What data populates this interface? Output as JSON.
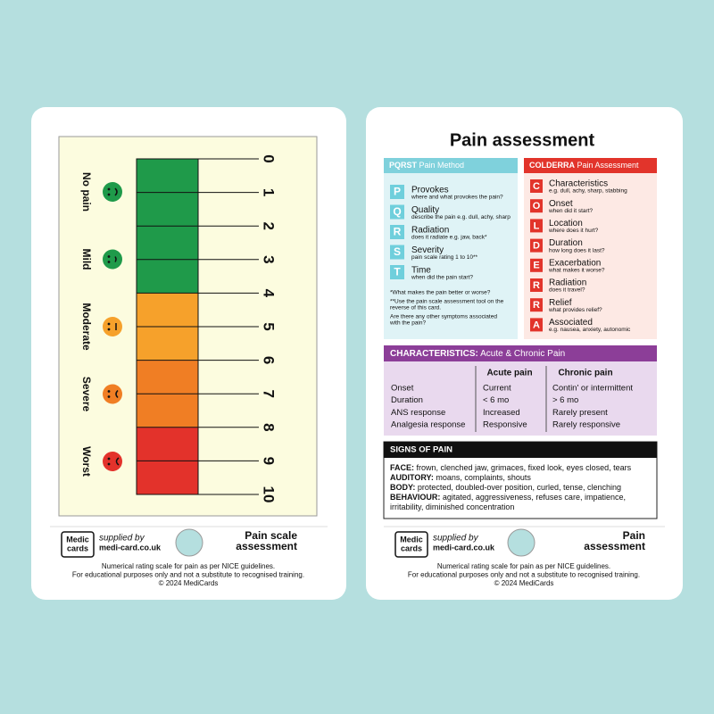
{
  "left_card": {
    "scale": {
      "numbers": [
        "0",
        "1",
        "2",
        "3",
        "4",
        "5",
        "6",
        "7",
        "8",
        "9",
        "10"
      ],
      "levels": [
        "No pain",
        "Mild",
        "Moderate",
        "Severe",
        "Worst"
      ]
    },
    "logo": [
      "Medic",
      "cards"
    ],
    "supplied_by": "supplied by",
    "url": "medi-card.co.uk",
    "card_title": [
      "Pain scale",
      "assessment"
    ],
    "footer": [
      "Numerical rating scale for pain as per NICE guidelines.",
      "For educational purposes only and not a substitute to recognised training.",
      "© 2024 MediCards"
    ]
  },
  "right_card": {
    "title": "Pain assessment",
    "pqrst": {
      "header": "PQRST",
      "header_sub": "Pain Method",
      "items": [
        {
          "letter": "P",
          "title": "Provokes",
          "desc": "where and what provokes the pain?"
        },
        {
          "letter": "Q",
          "title": "Quality",
          "desc": "describe the pain e.g. dull, achy, sharp"
        },
        {
          "letter": "R",
          "title": "Radiation",
          "desc": "does it radiate e.g. jaw, back*"
        },
        {
          "letter": "S",
          "title": "Severity",
          "desc": "pain scale rating 1 to 10**"
        },
        {
          "letter": "T",
          "title": "Time",
          "desc": "when did the pain start?"
        }
      ],
      "notes": [
        [
          "*What makes the pain better or worse?"
        ],
        [
          "**Use the pain scale assessment tool on the",
          "reverse of this card."
        ],
        [
          "Are there any other symptoms associated",
          "with the pain?"
        ]
      ]
    },
    "colderra": {
      "header": "COLDERRA",
      "header_sub": "Pain Assessment",
      "items": [
        {
          "letter": "C",
          "title": "Characteristics",
          "desc": "e.g. dull, achy, sharp, stabbing"
        },
        {
          "letter": "O",
          "title": "Onset",
          "desc": "when did it start?"
        },
        {
          "letter": "L",
          "title": "Location",
          "desc": "where does it hurt?"
        },
        {
          "letter": "D",
          "title": "Duration",
          "desc": "how long does it last?"
        },
        {
          "letter": "E",
          "title": "Exacerbation",
          "desc": "what makes it worse?"
        },
        {
          "letter": "R",
          "title": "Radiation",
          "desc": "does it travel?"
        },
        {
          "letter": "R",
          "title": "Relief",
          "desc": "what provides relief?"
        },
        {
          "letter": "A",
          "title": "Associated",
          "desc": "e.g. nausea, anxiety, autonomic"
        }
      ]
    },
    "characteristics": {
      "header": "CHARACTERISTICS:",
      "header_sub": "Acute & Chronic Pain",
      "columns": [
        "Acute pain",
        "Chronic pain"
      ],
      "rows": [
        [
          "Onset",
          "Current",
          "Contin' or intermittent"
        ],
        [
          "Duration",
          "< 6 mo",
          "> 6 mo"
        ],
        [
          "ANS response",
          "Increased",
          "Rarely present"
        ],
        [
          "Analgesia response",
          "Responsive",
          "Rarely responsive"
        ]
      ]
    },
    "signs": {
      "header": "SIGNS OF PAIN",
      "lines": [
        {
          "label": "FACE:",
          "text": "frown, clenched jaw, grimaces, fixed look, eyes closed, tears"
        },
        {
          "label": "AUDITORY:",
          "text": "moans, complaints, shouts"
        },
        {
          "label": "BODY:",
          "text": "protected, doubled-over position, curled, tense, clenching"
        },
        {
          "label": "BEHAVIOUR:",
          "text": "agitated, aggressiveness, refuses care, impatience,"
        },
        {
          "label": null,
          "text": "irritability, diminished concentration"
        }
      ]
    },
    "logo": [
      "Medic",
      "cards"
    ],
    "supplied_by": "supplied by",
    "url": "medi-card.co.uk",
    "card_title": [
      "Pain",
      "assessment"
    ],
    "footer": [
      "Numerical rating scale for pain as per NICE guidelines.",
      "For educational purposes only and not a substitute to recognised training.",
      "© 2024 MediCards"
    ]
  }
}
